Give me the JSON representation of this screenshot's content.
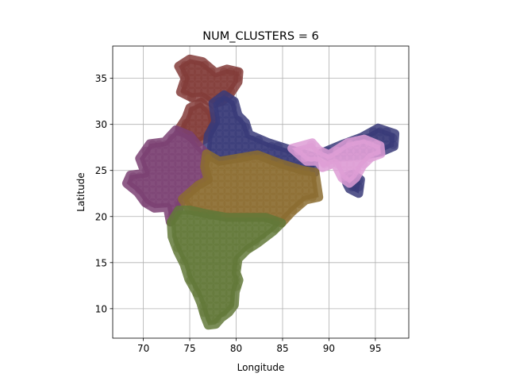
{
  "chart_data": {
    "type": "scatter",
    "title": "NUM_CLUSTERS = 6",
    "xlabel": "Longitude",
    "ylabel": "Latitude",
    "xlim": [
      66.7,
      98.6
    ],
    "ylim": [
      6.8,
      38.5
    ],
    "xticks": [
      70,
      75,
      80,
      85,
      90,
      95
    ],
    "yticks": [
      10,
      15,
      20,
      25,
      30,
      35
    ],
    "grid": true,
    "legend": "none",
    "series": [
      {
        "color": "#843c39",
        "regions": [
          [
            [
              74.5,
              35.0
            ],
            [
              73.8,
              36.3
            ],
            [
              75.0,
              37.1
            ],
            [
              76.4,
              36.8
            ],
            [
              77.8,
              35.6
            ],
            [
              79.0,
              36.0
            ],
            [
              80.3,
              35.7
            ],
            [
              80.2,
              34.6
            ],
            [
              79.3,
              33.2
            ],
            [
              78.5,
              32.5
            ],
            [
              77.5,
              32.2
            ],
            [
              76.3,
              33.0
            ],
            [
              75.2,
              32.9
            ],
            [
              74.0,
              33.5
            ]
          ],
          [
            [
              75.0,
              31.8
            ],
            [
              76.2,
              32.4
            ],
            [
              77.3,
              31.3
            ],
            [
              77.6,
              30.0
            ],
            [
              76.8,
              28.5
            ],
            [
              75.9,
              28.0
            ],
            [
              74.8,
              28.8
            ],
            [
              73.9,
              29.6
            ],
            [
              74.6,
              30.7
            ]
          ]
        ]
      },
      {
        "color": "#393b79",
        "regions": [
          [
            [
              77.5,
              32.3
            ],
            [
              78.7,
              33.2
            ],
            [
              79.8,
              32.5
            ],
            [
              80.2,
              31.0
            ],
            [
              81.0,
              30.2
            ],
            [
              81.4,
              28.9
            ],
            [
              83.5,
              28.0
            ],
            [
              86.0,
              27.2
            ],
            [
              88.3,
              26.5
            ],
            [
              88.5,
              24.8
            ],
            [
              87.2,
              25.0
            ],
            [
              84.6,
              25.8
            ],
            [
              82.3,
              26.7
            ],
            [
              80.0,
              26.3
            ],
            [
              78.2,
              26.0
            ],
            [
              76.8,
              26.8
            ],
            [
              77.0,
              28.8
            ],
            [
              77.8,
              30.3
            ]
          ],
          [
            [
              89.2,
              26.9
            ],
            [
              91.6,
              27.9
            ],
            [
              93.5,
              28.6
            ],
            [
              95.3,
              29.6
            ],
            [
              97.1,
              29.0
            ],
            [
              97.0,
              27.6
            ],
            [
              95.6,
              27.0
            ],
            [
              94.0,
              26.7
            ],
            [
              92.0,
              26.5
            ],
            [
              90.1,
              26.4
            ]
          ],
          [
            [
              91.8,
              24.3
            ],
            [
              92.6,
              24.6
            ],
            [
              93.4,
              24.0
            ],
            [
              93.2,
              22.5
            ],
            [
              92.2,
              23.0
            ],
            [
              91.9,
              23.6
            ]
          ]
        ]
      },
      {
        "color": "#de9ed6",
        "regions": [
          [
            [
              86.0,
              27.4
            ],
            [
              88.2,
              28.0
            ],
            [
              88.9,
              27.2
            ],
            [
              90.0,
              26.7
            ],
            [
              92.0,
              28.0
            ],
            [
              93.8,
              28.4
            ],
            [
              95.5,
              27.7
            ],
            [
              95.6,
              26.8
            ],
            [
              94.5,
              26.4
            ],
            [
              93.6,
              25.5
            ],
            [
              92.9,
              24.2
            ],
            [
              92.2,
              23.6
            ],
            [
              91.4,
              24.2
            ],
            [
              90.6,
              25.8
            ],
            [
              89.3,
              25.3
            ],
            [
              88.8,
              26.0
            ],
            [
              87.6,
              26.0
            ]
          ]
        ]
      },
      {
        "color": "#7b4173",
        "regions": [
          [
            [
              68.2,
              23.6
            ],
            [
              68.6,
              24.5
            ],
            [
              70.2,
              24.7
            ],
            [
              69.6,
              26.3
            ],
            [
              70.7,
              27.9
            ],
            [
              72.3,
              28.1
            ],
            [
              73.5,
              29.4
            ],
            [
              75.0,
              28.8
            ],
            [
              75.9,
              27.7
            ],
            [
              76.8,
              26.8
            ],
            [
              76.6,
              25.4
            ],
            [
              77.0,
              24.0
            ],
            [
              75.9,
              23.4
            ],
            [
              74.2,
              21.9
            ],
            [
              73.8,
              20.7
            ],
            [
              73.2,
              20.1
            ],
            [
              72.9,
              19.4
            ],
            [
              72.6,
              21.0
            ],
            [
              71.2,
              20.9
            ],
            [
              70.2,
              21.5
            ],
            [
              69.4,
              22.6
            ]
          ]
        ]
      },
      {
        "color": "#8c6d31",
        "regions": [
          [
            [
              76.8,
              26.8
            ],
            [
              78.2,
              26.0
            ],
            [
              80.0,
              26.3
            ],
            [
              82.3,
              26.7
            ],
            [
              84.6,
              25.8
            ],
            [
              87.2,
              25.0
            ],
            [
              88.5,
              24.8
            ],
            [
              88.9,
              22.1
            ],
            [
              87.5,
              21.8
            ],
            [
              86.8,
              21.2
            ],
            [
              86.0,
              20.5
            ],
            [
              84.9,
              19.3
            ],
            [
              83.2,
              19.9
            ],
            [
              81.0,
              19.9
            ],
            [
              79.0,
              19.9
            ],
            [
              76.8,
              20.3
            ],
            [
              75.0,
              20.7
            ],
            [
              74.2,
              21.9
            ],
            [
              75.9,
              23.4
            ],
            [
              77.0,
              24.0
            ],
            [
              76.6,
              25.4
            ]
          ]
        ]
      },
      {
        "color": "#637939",
        "regions": [
          [
            [
              73.0,
              19.4
            ],
            [
              73.8,
              20.7
            ],
            [
              75.0,
              20.7
            ],
            [
              76.8,
              20.3
            ],
            [
              79.0,
              19.9
            ],
            [
              81.0,
              19.9
            ],
            [
              83.2,
              19.9
            ],
            [
              84.9,
              19.3
            ],
            [
              84.0,
              18.4
            ],
            [
              82.3,
              17.1
            ],
            [
              81.2,
              16.4
            ],
            [
              80.2,
              15.4
            ],
            [
              80.0,
              13.9
            ],
            [
              80.3,
              13.1
            ],
            [
              79.9,
              11.8
            ],
            [
              79.8,
              10.4
            ],
            [
              79.2,
              9.6
            ],
            [
              78.4,
              9.0
            ],
            [
              77.8,
              8.3
            ],
            [
              77.0,
              8.2
            ],
            [
              76.6,
              9.2
            ],
            [
              76.2,
              10.6
            ],
            [
              75.7,
              11.8
            ],
            [
              74.9,
              13.2
            ],
            [
              74.4,
              14.8
            ],
            [
              73.7,
              16.2
            ],
            [
              73.1,
              17.8
            ]
          ]
        ]
      }
    ]
  }
}
